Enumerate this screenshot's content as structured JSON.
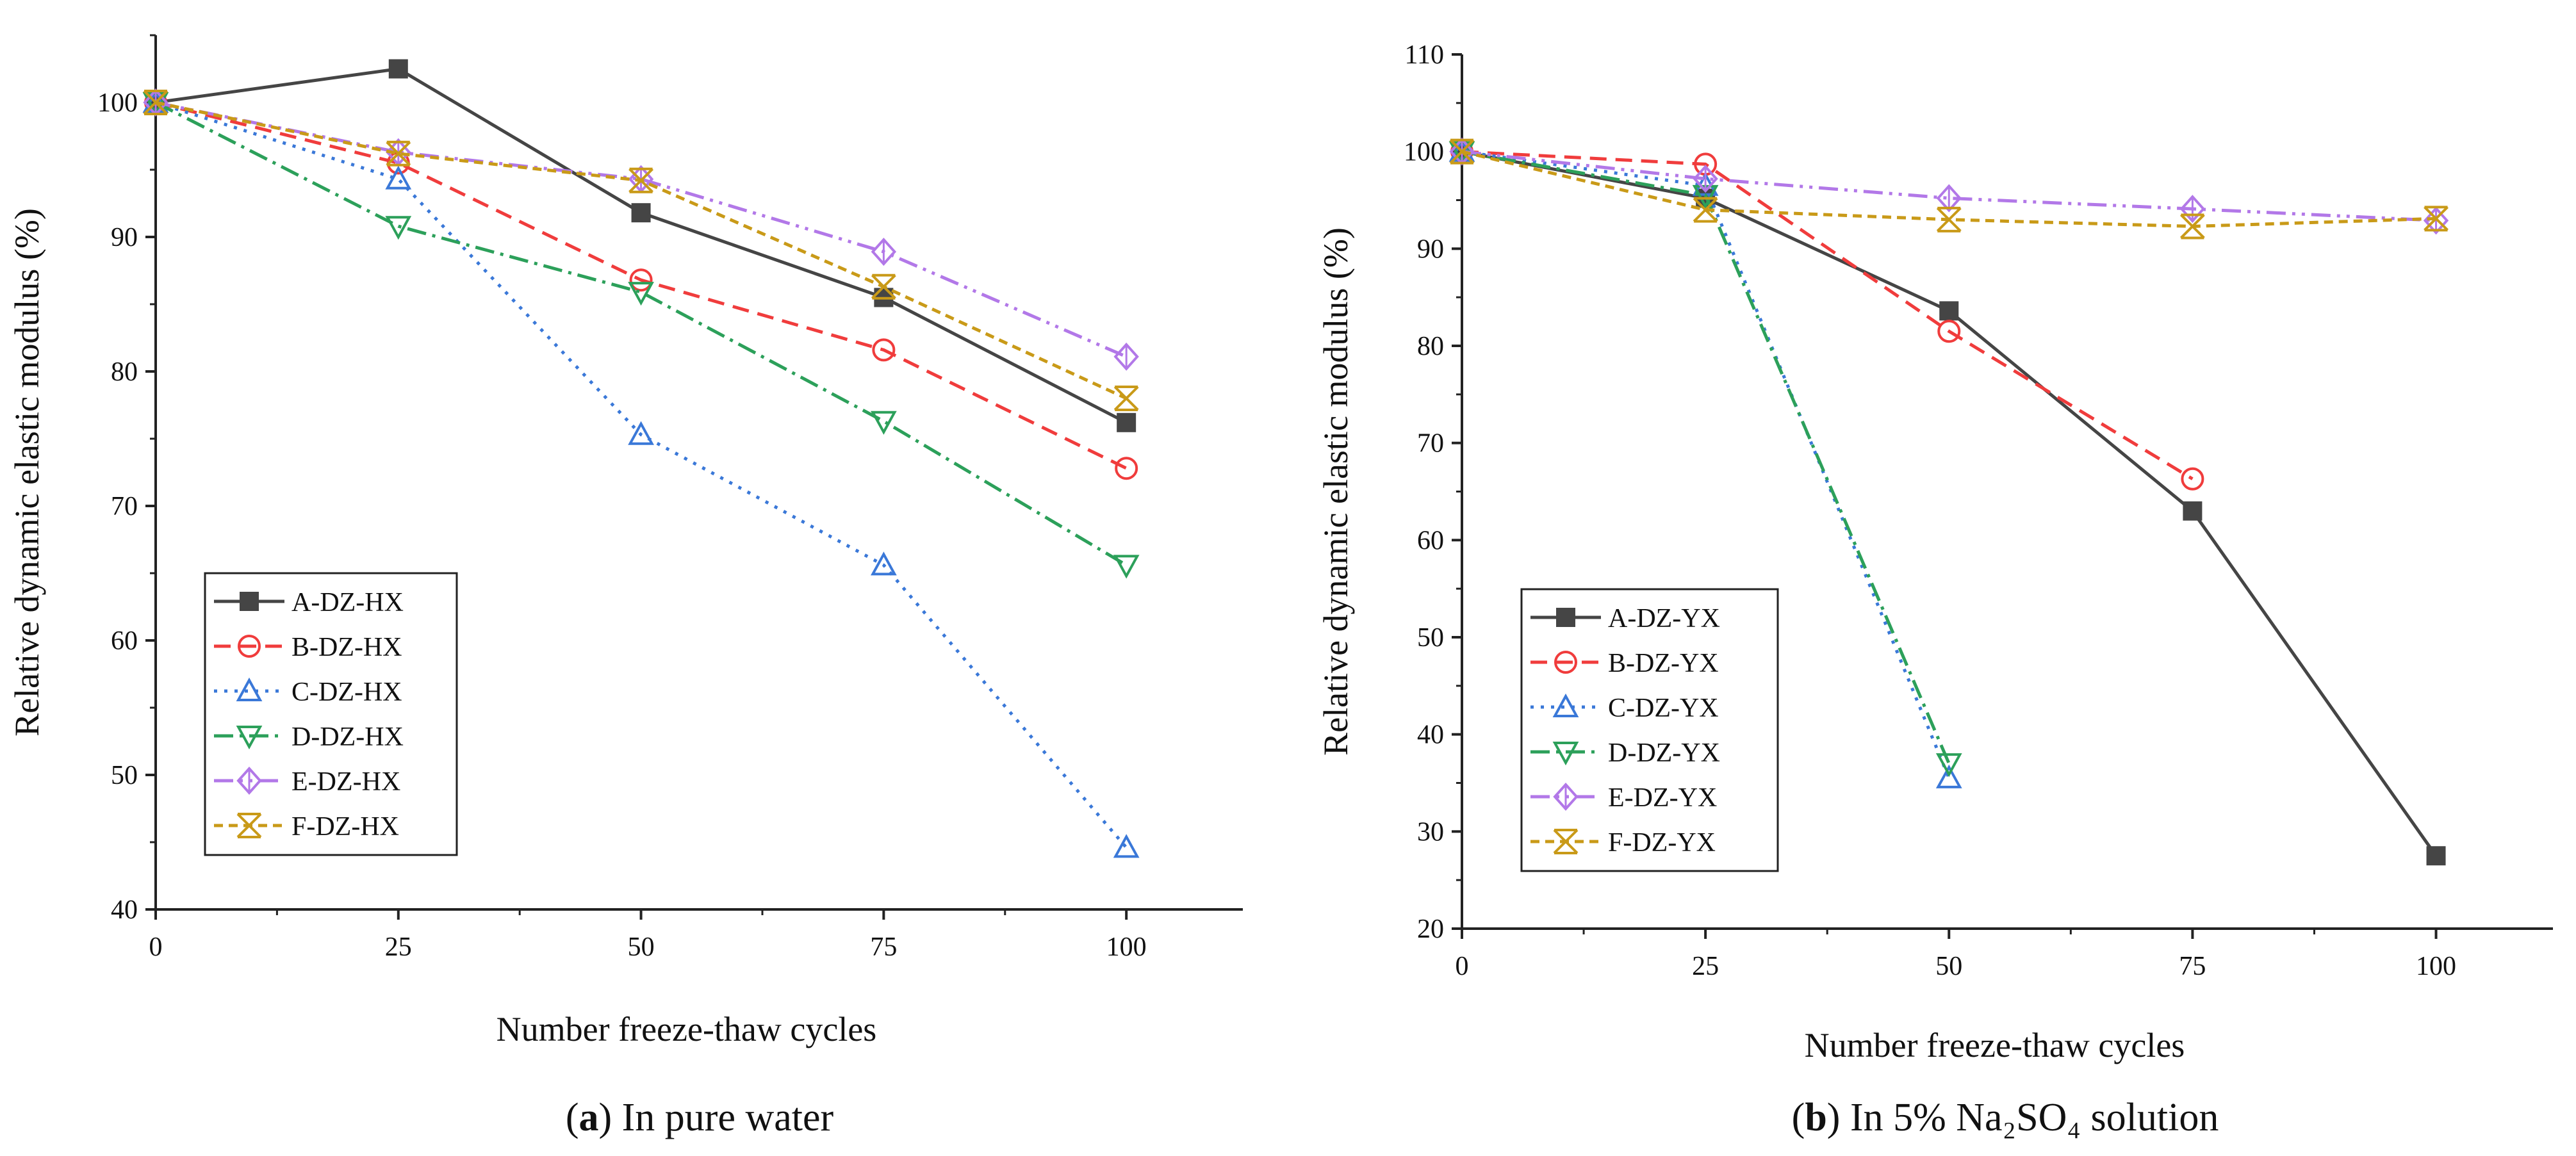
{
  "chart_data": [
    {
      "type": "line",
      "caption_letter": "a",
      "caption_text": " In pure water",
      "xlabel": "Number freeze-thaw cycles",
      "ylabel": "Relative dynamic elastic modulus (%)",
      "xlim": [
        0,
        112
      ],
      "ylim": [
        40,
        105
      ],
      "x_ticks": [
        0,
        25,
        50,
        75,
        100
      ],
      "y_ticks": [
        40,
        50,
        60,
        70,
        80,
        90,
        100
      ],
      "legend_location": "bottom-left",
      "series": [
        {
          "name": "A-DZ-HX",
          "x": [
            0,
            25,
            50,
            75,
            100
          ],
          "values": [
            100,
            102.5,
            91.8,
            85.5,
            76.2
          ],
          "color": "#454545",
          "dash": "",
          "marker": "square-filled"
        },
        {
          "name": "B-DZ-HX",
          "x": [
            0,
            25,
            50,
            75,
            100
          ],
          "values": [
            100,
            95.5,
            86.8,
            81.6,
            72.8
          ],
          "color": "#f03c3c",
          "dash": "26,14",
          "marker": "circle"
        },
        {
          "name": "C-DZ-HX",
          "x": [
            0,
            25,
            50,
            75,
            100
          ],
          "values": [
            100,
            94.3,
            75.3,
            65.6,
            44.6
          ],
          "color": "#3a78d8",
          "dash": "5,11",
          "marker": "triangle-up"
        },
        {
          "name": "D-DZ-HX",
          "x": [
            0,
            25,
            50,
            75,
            100
          ],
          "values": [
            100,
            90.8,
            85.9,
            76.3,
            65.6
          ],
          "color": "#2ca05a",
          "dash": "30,10,5,10",
          "marker": "triangle-down"
        },
        {
          "name": "E-DZ-HX",
          "x": [
            0,
            25,
            50,
            75,
            100
          ],
          "values": [
            100,
            96.3,
            94.3,
            88.9,
            81.1
          ],
          "color": "#b278e8",
          "dash": "30,10,5,10,5,10",
          "marker": "diamond"
        },
        {
          "name": "F-DZ-HX",
          "x": [
            0,
            25,
            50,
            75,
            100
          ],
          "values": [
            100,
            96.2,
            94.2,
            86.3,
            78.0
          ],
          "color": "#c99a18",
          "dash": "14,9",
          "marker": "star-x"
        }
      ]
    },
    {
      "type": "line",
      "caption_letter": "b",
      "caption_text": " In 5% Na₂SO₄ solution",
      "xlabel": "Number freeze-thaw cycles",
      "ylabel": "Relative dynamic elastic modulus (%)",
      "xlim": [
        0,
        112
      ],
      "ylim": [
        20,
        110
      ],
      "x_ticks": [
        0,
        25,
        50,
        75,
        100
      ],
      "y_ticks": [
        20,
        30,
        40,
        50,
        60,
        70,
        80,
        90,
        100,
        110
      ],
      "legend_location": "bottom-left",
      "series": [
        {
          "name": "A-DZ-YX",
          "x": [
            0,
            25,
            50,
            75,
            100
          ],
          "values": [
            100,
            95.2,
            83.6,
            63.0,
            27.5
          ],
          "color": "#454545",
          "dash": "",
          "marker": "square-filled"
        },
        {
          "name": "B-DZ-YX",
          "x": [
            0,
            25,
            50,
            75
          ],
          "values": [
            100,
            98.7,
            81.5,
            66.3
          ],
          "color": "#f03c3c",
          "dash": "26,14",
          "marker": "circle"
        },
        {
          "name": "C-DZ-YX",
          "x": [
            0,
            25,
            50
          ],
          "values": [
            100,
            96.5,
            35.5
          ],
          "color": "#3a78d8",
          "dash": "5,11",
          "marker": "triangle-up"
        },
        {
          "name": "D-DZ-YX",
          "x": [
            0,
            25,
            50
          ],
          "values": [
            100,
            95.5,
            37.0
          ],
          "color": "#2ca05a",
          "dash": "30,10,5,10",
          "marker": "triangle-down"
        },
        {
          "name": "E-DZ-YX",
          "x": [
            0,
            25,
            50,
            75,
            100
          ],
          "values": [
            100,
            97.2,
            95.2,
            94.1,
            92.9
          ],
          "color": "#b278e8",
          "dash": "30,10,5,10,5,10",
          "marker": "diamond"
        },
        {
          "name": "F-DZ-YX",
          "x": [
            0,
            25,
            50,
            75,
            100
          ],
          "values": [
            100,
            94.0,
            93.0,
            92.3,
            93.1
          ],
          "color": "#c99a18",
          "dash": "14,9",
          "marker": "star-x"
        }
      ]
    }
  ]
}
